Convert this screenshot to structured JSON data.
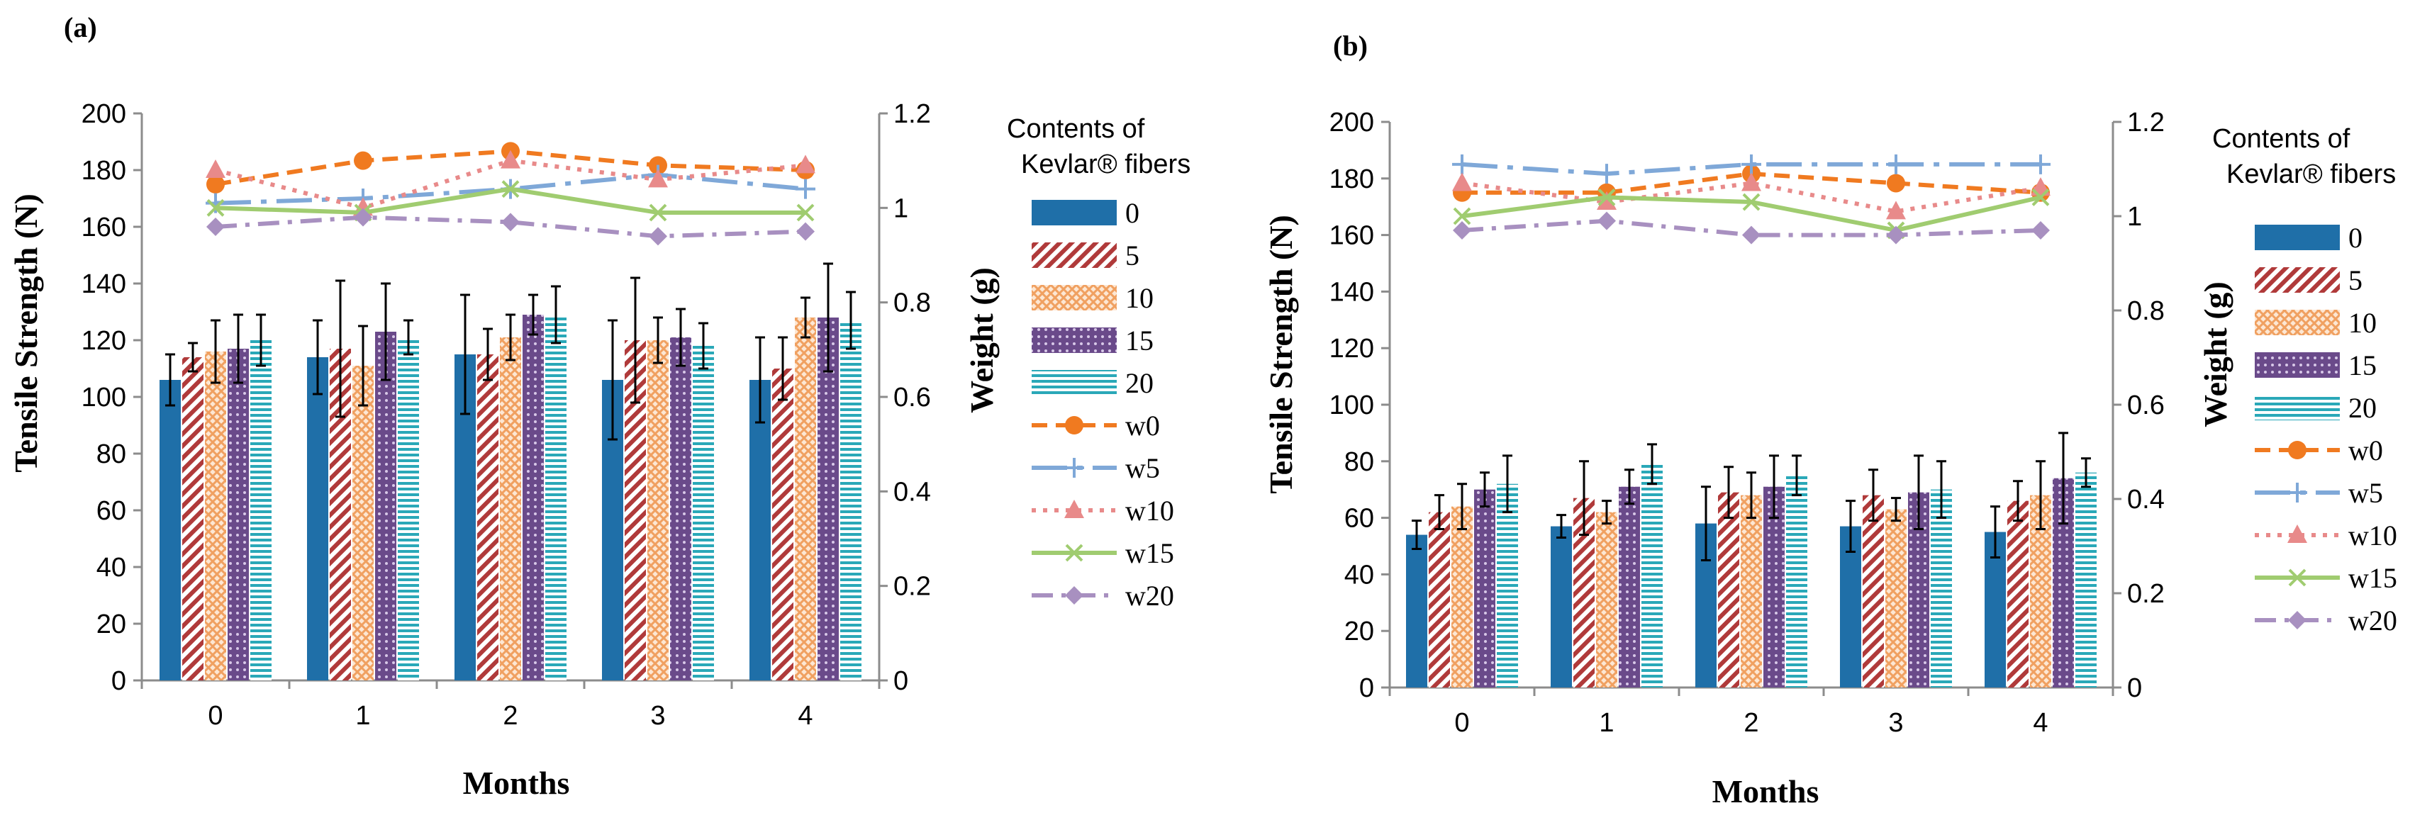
{
  "chart_data": [
    {
      "panel": "(a)",
      "type": "bar",
      "xlabel": "Months",
      "ylabel": "Tensile Strength (N)",
      "y2label": "Weight  (g)",
      "categories": [
        "0",
        "1",
        "2",
        "3",
        "4"
      ],
      "ylim": [
        0,
        200
      ],
      "yticks": [
        "0",
        "20",
        "40",
        "60",
        "80",
        "100",
        "120",
        "140",
        "160",
        "180",
        "200"
      ],
      "y2lim": [
        0,
        1.2
      ],
      "y2ticks": [
        "0",
        "0.2",
        "0.4",
        "0.6",
        "0.8",
        "1",
        "1.2"
      ],
      "series": [
        {
          "name": "0",
          "values": [
            106,
            114,
            115,
            106,
            106
          ],
          "errors": [
            9,
            13,
            21,
            21,
            15
          ]
        },
        {
          "name": "5",
          "values": [
            114,
            117,
            115,
            120,
            110
          ],
          "errors": [
            5,
            24,
            9,
            22,
            11
          ]
        },
        {
          "name": "10",
          "values": [
            116,
            111,
            121,
            120,
            128
          ],
          "errors": [
            11,
            14,
            8,
            8,
            7
          ]
        },
        {
          "name": "15",
          "values": [
            117,
            123,
            129,
            121,
            128
          ],
          "errors": [
            12,
            17,
            7,
            10,
            19
          ]
        },
        {
          "name": "20",
          "values": [
            120,
            121,
            129,
            118,
            127
          ],
          "errors": [
            9,
            6,
            10,
            8,
            10
          ]
        }
      ],
      "weight_series": [
        {
          "name": "w0",
          "values": [
            1.05,
            1.1,
            1.12,
            1.09,
            1.08
          ]
        },
        {
          "name": "w5",
          "values": [
            1.01,
            1.02,
            1.04,
            1.07,
            1.04
          ]
        },
        {
          "name": "w10",
          "values": [
            1.08,
            1.0,
            1.1,
            1.06,
            1.09
          ]
        },
        {
          "name": "w15",
          "values": [
            1.0,
            0.99,
            1.04,
            0.99,
            0.99
          ]
        },
        {
          "name": "w20",
          "values": [
            0.96,
            0.98,
            0.97,
            0.94,
            0.95
          ]
        }
      ],
      "legend_title": [
        "Contents of",
        "Kevlar® fibers"
      ]
    },
    {
      "panel": "(b)",
      "type": "bar",
      "xlabel": "Months",
      "ylabel": "Tensile Strength (N)",
      "y2label": "Weight  (g)",
      "categories": [
        "0",
        "1",
        "2",
        "3",
        "4"
      ],
      "ylim": [
        0,
        200
      ],
      "yticks": [
        "0",
        "20",
        "40",
        "60",
        "80",
        "100",
        "120",
        "140",
        "160",
        "180",
        "200"
      ],
      "y2lim": [
        0,
        1.2
      ],
      "y2ticks": [
        "0",
        "0.2",
        "0.4",
        "0.6",
        "0.8",
        "1",
        "1.2"
      ],
      "series": [
        {
          "name": "0",
          "values": [
            54,
            57,
            58,
            57,
            55
          ],
          "errors": [
            5,
            4,
            13,
            9,
            9
          ]
        },
        {
          "name": "5",
          "values": [
            62,
            67,
            69,
            68,
            66
          ],
          "errors": [
            6,
            13,
            9,
            9,
            7
          ]
        },
        {
          "name": "10",
          "values": [
            64,
            62,
            68,
            63,
            68
          ],
          "errors": [
            8,
            4,
            8,
            4,
            12
          ]
        },
        {
          "name": "15",
          "values": [
            70,
            71,
            71,
            69,
            74
          ],
          "errors": [
            6,
            6,
            11,
            13,
            16
          ]
        },
        {
          "name": "20",
          "values": [
            72,
            79,
            75,
            70,
            76
          ],
          "errors": [
            10,
            7,
            7,
            10,
            5
          ]
        }
      ],
      "weight_series": [
        {
          "name": "w0",
          "values": [
            1.05,
            1.05,
            1.09,
            1.07,
            1.05
          ]
        },
        {
          "name": "w5",
          "values": [
            1.11,
            1.09,
            1.11,
            1.11,
            1.11
          ]
        },
        {
          "name": "w10",
          "values": [
            1.07,
            1.03,
            1.07,
            1.01,
            1.06
          ]
        },
        {
          "name": "w15",
          "values": [
            1.0,
            1.04,
            1.03,
            0.97,
            1.04
          ]
        },
        {
          "name": "w20",
          "values": [
            0.97,
            0.99,
            0.96,
            0.96,
            0.97
          ]
        }
      ],
      "legend_title": [
        "Contents of",
        "Kevlar® fibers"
      ]
    }
  ],
  "colors": {
    "bar0": "#1f6fa8",
    "bar5": "#b03a3a",
    "bar10": "#f0a060",
    "bar15": "#6a4a8a",
    "bar20": "#2aa8b8",
    "w0": "#f07a20",
    "w5": "#7fa8d8",
    "w10": "#e88a8a",
    "w15": "#a0cc70",
    "w20": "#a890c0",
    "axis": "#8c8c8c",
    "error": "#000000"
  }
}
